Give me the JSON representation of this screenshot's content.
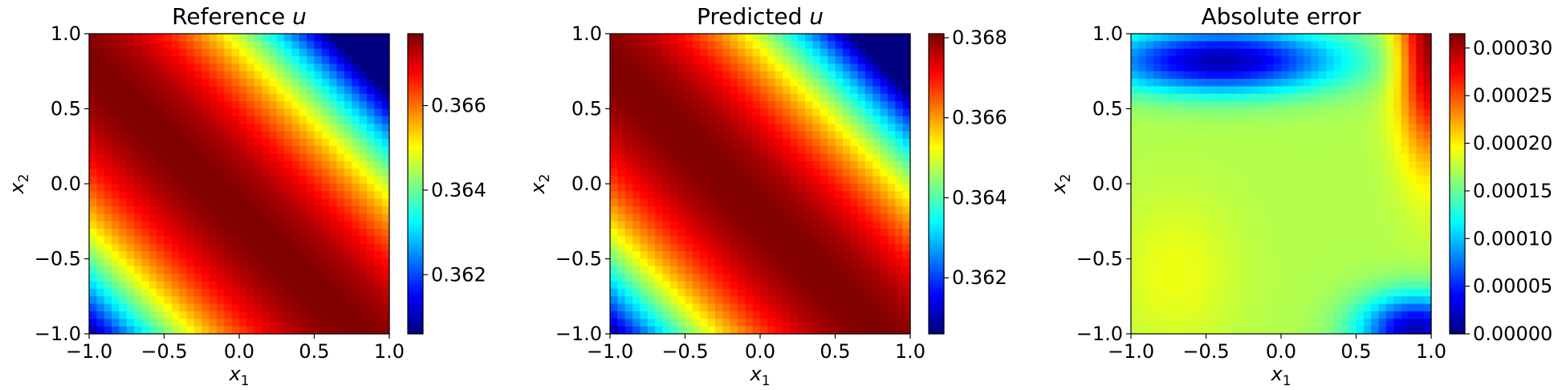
{
  "chart_data": [
    {
      "type": "heatmap",
      "title": "Reference u",
      "xlabel": "x1",
      "ylabel": "x2",
      "xlim": [
        -1.0,
        1.0
      ],
      "ylim": [
        -1.0,
        1.0
      ],
      "x_ticks": [
        "−1.0",
        "−0.5",
        "0.0",
        "0.5",
        "1.0"
      ],
      "y_ticks": [
        "−1.0",
        "−0.5",
        "0.0",
        "0.5",
        "1.0"
      ],
      "colormap": "jet",
      "colorbar": {
        "min": 0.3606,
        "max": 0.3677,
        "ticks": [
          0.362,
          0.364,
          0.366
        ],
        "tick_labels": [
          "0.362",
          "0.364",
          "0.366"
        ]
      },
      "field": "peak band along x1 + x2 ≈ -0.2; lowest at corners (1,1) and (-1,-1)"
    },
    {
      "type": "heatmap",
      "title": "Predicted u",
      "xlabel": "x1",
      "ylabel": "x2",
      "xlim": [
        -1.0,
        1.0
      ],
      "ylim": [
        -1.0,
        1.0
      ],
      "x_ticks": [
        "−1.0",
        "−0.5",
        "0.0",
        "0.5",
        "1.0"
      ],
      "y_ticks": [
        "−1.0",
        "−0.5",
        "0.0",
        "0.5",
        "1.0"
      ],
      "colormap": "jet",
      "colorbar": {
        "min": 0.3606,
        "max": 0.3681,
        "ticks": [
          0.362,
          0.364,
          0.366,
          0.368
        ],
        "tick_labels": [
          "0.362",
          "0.364",
          "0.366",
          "0.368"
        ]
      },
      "field": "peak band along x1 + x2 ≈ -0.2; lowest at corners (1,1) and (-1,-1)"
    },
    {
      "type": "heatmap",
      "title": "Absolute error",
      "xlabel": "x1",
      "ylabel": "x2",
      "xlim": [
        -1.0,
        1.0
      ],
      "ylim": [
        -1.0,
        1.0
      ],
      "x_ticks": [
        "−1.0",
        "−0.5",
        "0.0",
        "0.5",
        "1.0"
      ],
      "y_ticks": [
        "−1.0",
        "−0.5",
        "0.0",
        "0.5",
        "1.0"
      ],
      "colormap": "jet",
      "colorbar": {
        "min": 0.0,
        "max": 0.000315,
        "ticks": [
          0.0,
          5e-05,
          0.0001,
          0.00015,
          0.0002,
          0.00025,
          0.0003
        ],
        "tick_labels": [
          "0.00000",
          "0.00005",
          "0.00010",
          "0.00015",
          "0.00020",
          "0.00025",
          "0.00030"
        ]
      },
      "field": "max near top-right corner (~0.0003); low bands along top edge and bottom-right (~0.00001); ~0.00018 at bottom-left"
    }
  ]
}
